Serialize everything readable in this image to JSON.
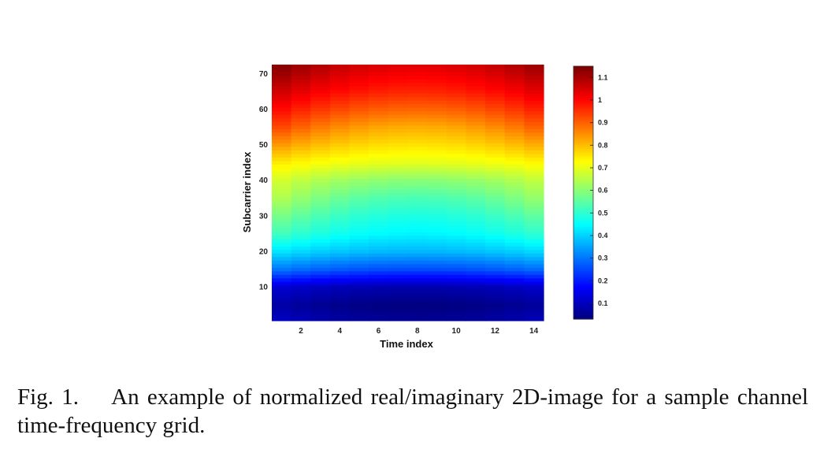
{
  "chart_data": {
    "type": "heatmap",
    "xlabel": "Time index",
    "ylabel": "Subcarrier index",
    "xlim": [
      1,
      14
    ],
    "ylim": [
      1,
      72
    ],
    "xticks": [
      2,
      4,
      6,
      8,
      10,
      12,
      14
    ],
    "yticks": [
      10,
      20,
      30,
      40,
      50,
      60,
      70
    ],
    "colormap": "jet",
    "clim": [
      0.03,
      1.15
    ],
    "colorbar_ticks": [
      0.1,
      0.2,
      0.3,
      0.4,
      0.5,
      0.6,
      0.7,
      0.8,
      0.9,
      1,
      1.1
    ],
    "profile_subcarriers": [
      1,
      5,
      10,
      15,
      20,
      25,
      30,
      35,
      40,
      45,
      50,
      55,
      60,
      65,
      70,
      72
    ],
    "profile_edge_values": [
      0.1,
      0.07,
      0.12,
      0.3,
      0.42,
      0.52,
      0.58,
      0.64,
      0.68,
      0.75,
      0.84,
      0.93,
      1.0,
      1.06,
      1.12,
      1.14
    ],
    "profile_center_values": [
      0.05,
      0.03,
      0.08,
      0.25,
      0.37,
      0.44,
      0.48,
      0.53,
      0.6,
      0.7,
      0.76,
      0.82,
      0.9,
      0.97,
      1.02,
      1.04
    ]
  },
  "caption": {
    "label": "Fig. 1.",
    "text": "An example of normalized real/imaginary 2D-image for a sample channel time-frequency grid."
  }
}
